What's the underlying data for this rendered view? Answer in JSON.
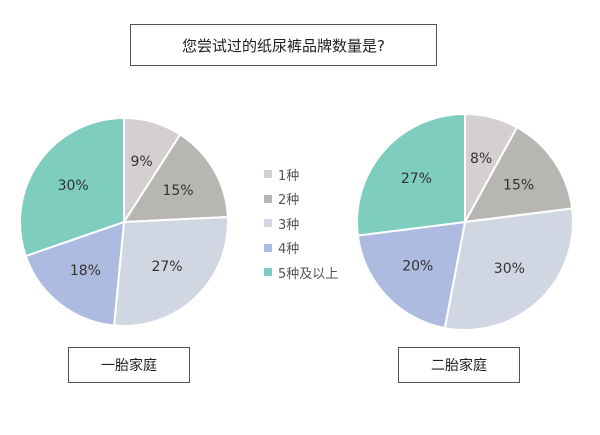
{
  "title": "您尝试过的纸尿裤品牌数量是?",
  "legend": [
    {
      "label": "1种",
      "color": "#d4d0cf"
    },
    {
      "label": "2种",
      "color": "#b8b6b3"
    },
    {
      "label": "3种",
      "color": "#d1d7e2"
    },
    {
      "label": "4种",
      "color": "#aebbe0"
    },
    {
      "label": "5种及以上",
      "color": "#7ecdbf"
    }
  ],
  "chart_data": [
    {
      "type": "pie",
      "title": "一胎家庭",
      "categories": [
        "1种",
        "2种",
        "3种",
        "4种",
        "5种及以上"
      ],
      "values": [
        9,
        15,
        27,
        18,
        30
      ],
      "labels": [
        "9%",
        "15%",
        "27%",
        "18%",
        "30%"
      ],
      "colors": [
        "#d4d0cf",
        "#b8b6b3",
        "#d1d7e2",
        "#aebbe0",
        "#7ecdbf"
      ]
    },
    {
      "type": "pie",
      "title": "二胎家庭",
      "categories": [
        "1种",
        "2种",
        "3种",
        "4种",
        "5种及以上"
      ],
      "values": [
        8,
        15,
        30,
        20,
        27
      ],
      "labels": [
        "8%",
        "15%",
        "30%",
        "20%",
        "27%"
      ],
      "colors": [
        "#d4d0cf",
        "#b8b6b3",
        "#d1d7e2",
        "#aebbe0",
        "#7ecdbf"
      ]
    }
  ]
}
